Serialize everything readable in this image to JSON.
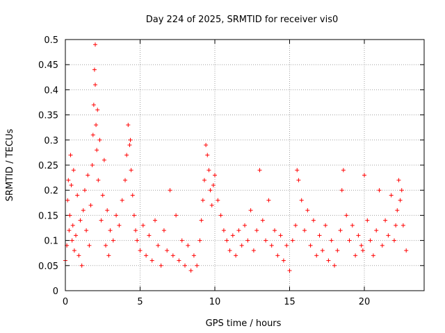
{
  "chart_data": {
    "type": "scatter",
    "title": "Day 224 of 2025, SRMTID for receiver vis0",
    "xlabel": "GPS time / hours",
    "ylabel": "SRMTID / TECUs",
    "xlim": [
      0,
      24
    ],
    "ylim": [
      0,
      0.5
    ],
    "xticks": [
      0,
      5,
      10,
      15,
      20
    ],
    "xtick_labels": [
      "0",
      "5",
      "10",
      "15",
      "20"
    ],
    "yticks": [
      0,
      0.05,
      0.1,
      0.15,
      0.2,
      0.25,
      0.3,
      0.35,
      0.4,
      0.45,
      0.5
    ],
    "ytick_labels": [
      "0",
      "0.05",
      "0.1",
      "0.15",
      "0.2",
      "0.25",
      "0.3",
      "0.35",
      "0.4",
      "0.45",
      "0.5"
    ],
    "grid": true,
    "marker": "+",
    "marker_color": "#ff0000",
    "series": [
      {
        "name": "vis0",
        "x": [
          0.0,
          0.1,
          0.15,
          0.2,
          0.25,
          0.3,
          0.35,
          0.4,
          0.45,
          0.5,
          0.55,
          0.6,
          0.7,
          0.8,
          0.9,
          1.0,
          1.1,
          1.2,
          1.3,
          1.4,
          1.5,
          1.6,
          1.7,
          1.8,
          1.85,
          1.9,
          1.95,
          2.0,
          2.0,
          2.05,
          2.1,
          2.15,
          2.2,
          2.3,
          2.4,
          2.5,
          2.6,
          2.7,
          2.8,
          2.9,
          3.0,
          3.2,
          3.4,
          3.6,
          3.8,
          4.0,
          4.1,
          4.2,
          4.3,
          4.35,
          4.4,
          4.5,
          4.6,
          4.7,
          4.8,
          5.0,
          5.2,
          5.4,
          5.6,
          5.8,
          6.0,
          6.2,
          6.4,
          6.6,
          6.8,
          7.0,
          7.2,
          7.4,
          7.6,
          7.8,
          8.0,
          8.2,
          8.4,
          8.6,
          8.8,
          9.0,
          9.1,
          9.2,
          9.3,
          9.4,
          9.5,
          9.6,
          9.7,
          9.8,
          9.9,
          10.0,
          10.2,
          10.4,
          10.6,
          10.8,
          11.0,
          11.2,
          11.4,
          11.6,
          11.8,
          12.0,
          12.2,
          12.4,
          12.6,
          12.8,
          13.0,
          13.2,
          13.4,
          13.6,
          13.8,
          14.0,
          14.2,
          14.4,
          14.6,
          14.8,
          15.0,
          15.2,
          15.4,
          15.5,
          15.6,
          15.8,
          16.0,
          16.2,
          16.4,
          16.6,
          16.8,
          17.0,
          17.2,
          17.4,
          17.6,
          17.8,
          18.0,
          18.2,
          18.4,
          18.5,
          18.6,
          18.8,
          19.0,
          19.2,
          19.4,
          19.6,
          19.8,
          19.9,
          20.0,
          20.2,
          20.4,
          20.6,
          20.8,
          21.0,
          21.2,
          21.4,
          21.6,
          21.8,
          22.0,
          22.1,
          22.2,
          22.3,
          22.4,
          22.5,
          22.6,
          22.8
        ],
        "y": [
          0.06,
          0.09,
          0.18,
          0.22,
          0.12,
          0.15,
          0.27,
          0.21,
          0.1,
          0.13,
          0.24,
          0.08,
          0.11,
          0.19,
          0.07,
          0.14,
          0.05,
          0.16,
          0.2,
          0.12,
          0.23,
          0.09,
          0.17,
          0.25,
          0.31,
          0.37,
          0.44,
          0.49,
          0.41,
          0.33,
          0.28,
          0.36,
          0.22,
          0.3,
          0.14,
          0.19,
          0.26,
          0.09,
          0.16,
          0.07,
          0.12,
          0.1,
          0.15,
          0.13,
          0.18,
          0.22,
          0.27,
          0.33,
          0.29,
          0.3,
          0.24,
          0.19,
          0.15,
          0.12,
          0.1,
          0.08,
          0.13,
          0.07,
          0.11,
          0.06,
          0.14,
          0.09,
          0.05,
          0.12,
          0.08,
          0.2,
          0.07,
          0.15,
          0.06,
          0.1,
          0.05,
          0.09,
          0.04,
          0.07,
          0.05,
          0.1,
          0.14,
          0.18,
          0.22,
          0.29,
          0.27,
          0.24,
          0.2,
          0.17,
          0.21,
          0.23,
          0.18,
          0.15,
          0.12,
          0.1,
          0.08,
          0.11,
          0.07,
          0.12,
          0.09,
          0.13,
          0.1,
          0.16,
          0.08,
          0.12,
          0.24,
          0.14,
          0.1,
          0.18,
          0.09,
          0.12,
          0.07,
          0.11,
          0.06,
          0.09,
          0.04,
          0.1,
          0.13,
          0.24,
          0.22,
          0.18,
          0.12,
          0.16,
          0.09,
          0.14,
          0.07,
          0.11,
          0.08,
          0.13,
          0.06,
          0.1,
          0.05,
          0.08,
          0.12,
          0.2,
          0.24,
          0.15,
          0.1,
          0.13,
          0.07,
          0.11,
          0.09,
          0.08,
          0.23,
          0.14,
          0.1,
          0.07,
          0.12,
          0.2,
          0.09,
          0.14,
          0.11,
          0.19,
          0.1,
          0.13,
          0.16,
          0.22,
          0.18,
          0.2,
          0.13,
          0.08
        ]
      }
    ]
  }
}
